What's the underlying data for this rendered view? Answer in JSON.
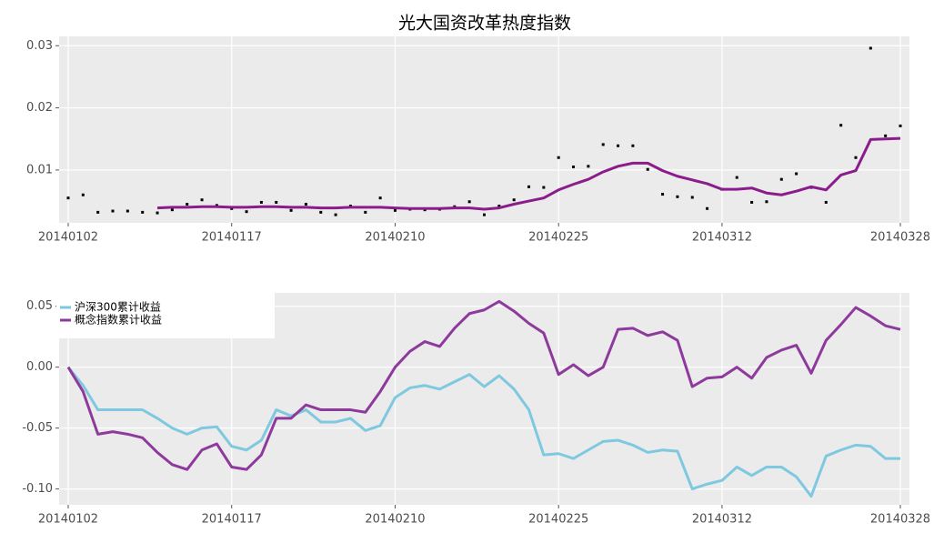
{
  "chart_data": [
    {
      "type": "line",
      "title": "光大国资改革热度指数",
      "categories": [
        "20140102",
        null,
        null,
        null,
        null,
        null,
        null,
        null,
        null,
        null,
        null,
        "20140117",
        null,
        null,
        null,
        null,
        null,
        null,
        null,
        null,
        null,
        null,
        "20140210",
        null,
        null,
        null,
        null,
        null,
        null,
        null,
        null,
        null,
        null,
        "20140225",
        null,
        null,
        null,
        null,
        null,
        null,
        null,
        null,
        null,
        null,
        "20140312",
        null,
        null,
        null,
        null,
        null,
        null,
        null,
        null,
        null,
        null,
        null,
        "20140328"
      ],
      "series": [
        {
          "style": "points",
          "color": "#000000",
          "values": [
            0.0055,
            0.006,
            0.0032,
            0.0034,
            0.0034,
            0.0032,
            0.0031,
            0.0036,
            0.0045,
            0.0052,
            0.0043,
            0.0038,
            0.0033,
            0.0048,
            0.0048,
            0.0035,
            0.0045,
            0.0032,
            0.0028,
            0.0042,
            0.0032,
            0.0055,
            0.0035,
            0.0037,
            0.0036,
            0.0037,
            0.0041,
            0.0049,
            0.0028,
            0.0042,
            0.0052,
            0.0073,
            0.0072,
            0.012,
            0.0105,
            0.0106,
            0.0141,
            0.0139,
            0.0139,
            0.0101,
            0.0061,
            0.0057,
            0.0056,
            0.0038,
            0.0069,
            0.0088,
            0.0048,
            0.0049,
            0.0085,
            0.0094,
            0.0072,
            0.0048,
            0.0172,
            0.012,
            0.0296,
            0.0155,
            0.0171
          ]
        },
        {
          "style": "line",
          "color": "#8b1c8b",
          "values": [
            null,
            null,
            null,
            null,
            null,
            null,
            0.0039,
            0.004,
            0.004,
            0.0041,
            0.0041,
            0.004,
            0.004,
            0.0041,
            0.0041,
            0.004,
            0.004,
            0.0039,
            0.0039,
            0.004,
            0.004,
            0.004,
            0.0039,
            0.0038,
            0.0038,
            0.0038,
            0.0039,
            0.0039,
            0.0037,
            0.0039,
            0.0045,
            0.005,
            0.0055,
            0.0068,
            0.0077,
            0.0085,
            0.0097,
            0.0106,
            0.0111,
            0.0111,
            0.0099,
            0.009,
            0.0084,
            0.0078,
            0.0069,
            0.0069,
            0.0071,
            0.0063,
            0.006,
            0.0066,
            0.0073,
            0.0068,
            0.0092,
            0.0099,
            0.0149,
            0.015,
            0.0151
          ]
        }
      ],
      "ylim": [
        0.0015,
        0.0315
      ],
      "yticks": [
        0.01,
        0.02,
        0.03
      ],
      "grid": true
    },
    {
      "type": "line",
      "categories": [
        "20140102",
        null,
        null,
        null,
        null,
        null,
        null,
        null,
        null,
        null,
        null,
        "20140117",
        null,
        null,
        null,
        null,
        null,
        null,
        null,
        null,
        null,
        null,
        "20140210",
        null,
        null,
        null,
        null,
        null,
        null,
        null,
        null,
        null,
        null,
        "20140225",
        null,
        null,
        null,
        null,
        null,
        null,
        null,
        null,
        null,
        null,
        "20140312",
        null,
        null,
        null,
        null,
        null,
        null,
        null,
        null,
        null,
        null,
        null,
        "20140328"
      ],
      "series": [
        {
          "name": "沪深300累计收益",
          "style": "line",
          "color": "#7ec8e0",
          "values": [
            0,
            -0.015,
            -0.035,
            -0.035,
            -0.035,
            -0.035,
            -0.042,
            -0.05,
            -0.055,
            -0.05,
            -0.049,
            -0.065,
            -0.068,
            -0.06,
            -0.035,
            -0.04,
            -0.035,
            -0.045,
            -0.045,
            -0.042,
            -0.052,
            -0.048,
            -0.025,
            -0.017,
            -0.015,
            -0.018,
            -0.012,
            -0.006,
            -0.016,
            -0.007,
            -0.018,
            -0.035,
            -0.072,
            -0.071,
            -0.075,
            -0.068,
            -0.061,
            -0.06,
            -0.064,
            -0.07,
            -0.068,
            -0.069,
            -0.1,
            -0.096,
            -0.093,
            -0.082,
            -0.089,
            -0.082,
            -0.082,
            -0.09,
            -0.106,
            -0.073,
            -0.068,
            -0.064,
            -0.065,
            -0.075,
            -0.075
          ]
        },
        {
          "name": "概念指数累计收益",
          "style": "line",
          "color": "#8e3a9d",
          "values": [
            0,
            -0.02,
            -0.055,
            -0.053,
            -0.055,
            -0.058,
            -0.07,
            -0.08,
            -0.084,
            -0.068,
            -0.063,
            -0.082,
            -0.084,
            -0.072,
            -0.042,
            -0.042,
            -0.031,
            -0.035,
            -0.035,
            -0.035,
            -0.037,
            -0.02,
            0,
            0.013,
            0.021,
            0.017,
            0.032,
            0.044,
            0.047,
            0.054,
            0.046,
            0.036,
            0.028,
            -0.006,
            0.002,
            -0.007,
            0,
            0.031,
            0.032,
            0.026,
            0.029,
            0.022,
            -0.016,
            -0.009,
            -0.008,
            0,
            -0.009,
            0.008,
            0.014,
            0.018,
            -0.005,
            0.022,
            0.035,
            0.049,
            0.042,
            0.034,
            0.031
          ]
        }
      ],
      "ylim": [
        -0.113,
        0.061
      ],
      "yticks": [
        0.05,
        {
          "value": 0,
          "label": "0.00"
        },
        -0.05,
        {
          "value": -0.1,
          "label": "-0.10"
        }
      ],
      "grid": true,
      "legend": "top-left"
    }
  ]
}
